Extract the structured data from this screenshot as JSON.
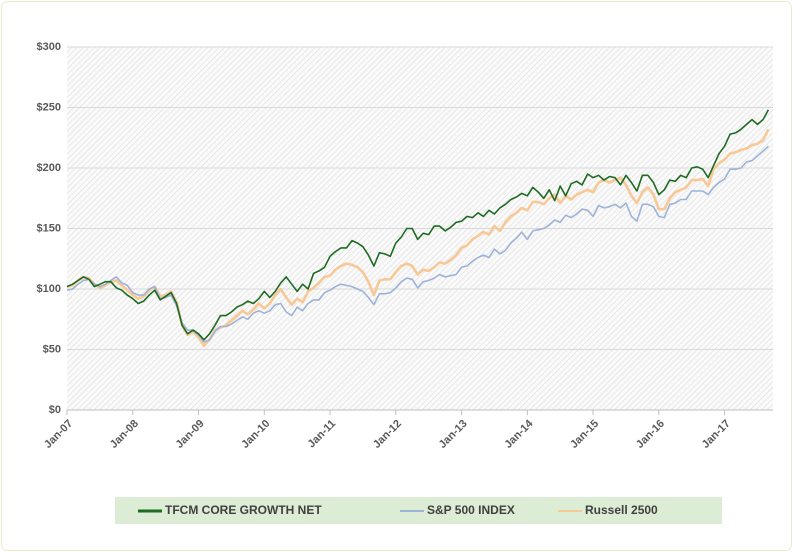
{
  "chart_data": {
    "type": "line",
    "categories": [
      "Jan-07",
      null,
      null,
      null,
      null,
      null,
      null,
      null,
      null,
      null,
      null,
      null,
      "Jan-08",
      null,
      null,
      null,
      null,
      null,
      null,
      null,
      null,
      null,
      null,
      null,
      "Jan-09",
      null,
      null,
      null,
      null,
      null,
      null,
      null,
      null,
      null,
      null,
      null,
      "Jan-10",
      null,
      null,
      null,
      null,
      null,
      null,
      null,
      null,
      null,
      null,
      null,
      "Jan-11",
      null,
      null,
      null,
      null,
      null,
      null,
      null,
      null,
      null,
      null,
      null,
      "Jan-12",
      null,
      null,
      null,
      null,
      null,
      null,
      null,
      null,
      null,
      null,
      null,
      "Jan-13",
      null,
      null,
      null,
      null,
      null,
      null,
      null,
      null,
      null,
      null,
      null,
      "Jan-14",
      null,
      null,
      null,
      null,
      null,
      null,
      null,
      null,
      null,
      null,
      null,
      "Jan-15",
      null,
      null,
      null,
      null,
      null,
      null,
      null,
      null,
      null,
      null,
      null,
      "Jan-16",
      null,
      null,
      null,
      null,
      null,
      null,
      null,
      null,
      null,
      null,
      null,
      "Jan-17",
      null,
      null,
      null,
      null,
      null,
      null,
      null,
      null
    ],
    "series": [
      {
        "name": "TFCM CORE GROWTH NET",
        "color": "#1e6b22",
        "values": [
          102,
          104,
          107,
          110,
          108,
          102,
          104,
          106,
          106,
          101,
          99,
          95,
          92,
          88,
          90,
          95,
          99,
          91,
          94,
          97,
          88,
          70,
          63,
          66,
          63,
          58,
          63,
          70,
          78,
          78,
          81,
          85,
          87,
          90,
          88,
          92,
          98,
          93,
          98,
          105,
          110,
          104,
          98,
          104,
          100,
          113,
          115,
          118,
          127,
          131,
          134,
          134,
          140,
          138,
          135,
          128,
          119,
          130,
          129,
          127,
          138,
          143,
          150,
          150,
          141,
          146,
          145,
          152,
          152,
          148,
          151,
          155,
          156,
          160,
          159,
          163,
          160,
          165,
          162,
          167,
          170,
          174,
          176,
          179,
          177,
          184,
          180,
          175,
          182,
          173,
          185,
          177,
          187,
          189,
          186,
          195,
          192,
          194,
          190,
          193,
          192,
          186,
          194,
          188,
          181,
          194,
          194,
          188,
          178,
          182,
          190,
          189,
          194,
          192,
          200,
          201,
          199,
          192,
          202,
          212,
          218,
          228,
          229,
          232,
          236,
          240,
          236,
          240,
          248
        ]
      },
      {
        "name": "S&P 500 INDEX",
        "color": "#9db3d8",
        "values": [
          99,
          100,
          104,
          107,
          108,
          104,
          102,
          104,
          107,
          110,
          105,
          103,
          97,
          95,
          95,
          100,
          102,
          92,
          93,
          95,
          86,
          72,
          66,
          66,
          62,
          56,
          58,
          65,
          69,
          69,
          71,
          74,
          77,
          75,
          80,
          82,
          80,
          82,
          87,
          88,
          81,
          78,
          85,
          82,
          88,
          91,
          91,
          97,
          99,
          102,
          104,
          103,
          102,
          100,
          98,
          93,
          87,
          96,
          96,
          97,
          101,
          106,
          109,
          108,
          101,
          106,
          107,
          109,
          112,
          110,
          111,
          112,
          118,
          119,
          123,
          126,
          128,
          126,
          133,
          129,
          132,
          138,
          142,
          147,
          141,
          148,
          149,
          150,
          153,
          157,
          155,
          161,
          159,
          162,
          166,
          165,
          160,
          169,
          167,
          168,
          170,
          167,
          171,
          160,
          156,
          170,
          170,
          168,
          160,
          159,
          170,
          171,
          174,
          174,
          181,
          181,
          181,
          178,
          184,
          188,
          191,
          199,
          199,
          200,
          205,
          206,
          210,
          214,
          218
        ]
      },
      {
        "name": "Russell 2500",
        "color": "#f8c896",
        "values": [
          102,
          103,
          107,
          110,
          109,
          104,
          101,
          103,
          106,
          107,
          103,
          99,
          95,
          92,
          94,
          99,
          102,
          94,
          95,
          98,
          89,
          70,
          62,
          65,
          60,
          53,
          58,
          66,
          68,
          70,
          74,
          78,
          82,
          79,
          83,
          88,
          84,
          88,
          95,
          100,
          93,
          87,
          92,
          89,
          98,
          101,
          105,
          110,
          111,
          116,
          119,
          121,
          120,
          118,
          114,
          106,
          95,
          107,
          108,
          108,
          114,
          119,
          121,
          119,
          112,
          116,
          115,
          118,
          122,
          121,
          124,
          128,
          134,
          136,
          141,
          144,
          147,
          145,
          152,
          148,
          155,
          160,
          163,
          167,
          165,
          172,
          172,
          170,
          175,
          178,
          171,
          177,
          174,
          178,
          180,
          182,
          180,
          188,
          190,
          188,
          190,
          192,
          186,
          177,
          171,
          180,
          184,
          178,
          166,
          166,
          175,
          180,
          182,
          184,
          190,
          190,
          191,
          185,
          199,
          204,
          207,
          212,
          213,
          215,
          216,
          219,
          220,
          223,
          232
        ]
      }
    ],
    "ylim": [
      0,
      300
    ],
    "yticks": [
      {
        "value": 0,
        "label": "$0"
      },
      {
        "value": 50,
        "label": "$50"
      },
      {
        "value": 100,
        "label": "$100"
      },
      {
        "value": 150,
        "label": "$150"
      },
      {
        "value": 200,
        "label": "$200"
      },
      {
        "value": 250,
        "label": "$250"
      },
      {
        "value": 300,
        "label": "$300"
      }
    ],
    "grid": true
  }
}
